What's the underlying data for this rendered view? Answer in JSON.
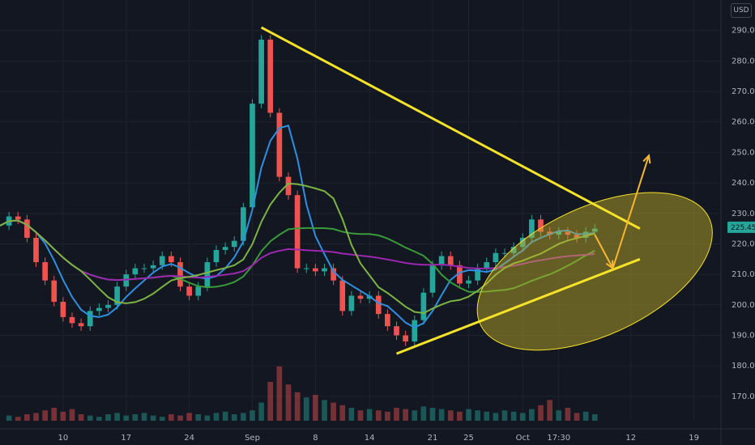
{
  "chart_data": {
    "type": "candlestick",
    "currency": "USD",
    "last_price": "225.45",
    "ylim": [
      162,
      300
    ],
    "y_ticks": [
      170,
      180,
      190,
      200,
      210,
      220,
      230,
      240,
      250,
      260,
      270,
      280,
      290
    ],
    "x_ticks": [
      {
        "label": "10",
        "day": 10
      },
      {
        "label": "17",
        "day": 17
      },
      {
        "label": "24",
        "day": 24
      },
      {
        "label": "Sep",
        "day": 31
      },
      {
        "label": "8",
        "day": 38
      },
      {
        "label": "14",
        "day": 44
      },
      {
        "label": "21",
        "day": 51
      },
      {
        "label": "25",
        "day": 55
      },
      {
        "label": "Oct",
        "day": 61
      },
      {
        "label": "17:30",
        "day": 65
      },
      {
        "label": "12",
        "day": 73
      },
      {
        "label": "19",
        "day": 80
      }
    ],
    "xlim": [
      3,
      83
    ],
    "price_path": [
      [
        3,
        226
      ],
      [
        4,
        229
      ],
      [
        5,
        228
      ],
      [
        6,
        222
      ],
      [
        7,
        214
      ],
      [
        8,
        208
      ],
      [
        9,
        201
      ],
      [
        10,
        196
      ],
      [
        11,
        194
      ],
      [
        12,
        193
      ],
      [
        13,
        198
      ],
      [
        14,
        199
      ],
      [
        15,
        200
      ],
      [
        16,
        206
      ],
      [
        17,
        210
      ],
      [
        18,
        212
      ],
      [
        19,
        212
      ],
      [
        20,
        213
      ],
      [
        21,
        216
      ],
      [
        22,
        214
      ],
      [
        23,
        206
      ],
      [
        24,
        203
      ],
      [
        25,
        206
      ],
      [
        26,
        214
      ],
      [
        27,
        218
      ],
      [
        28,
        219
      ],
      [
        29,
        221
      ],
      [
        30,
        232
      ],
      [
        31,
        266
      ],
      [
        32,
        287
      ],
      [
        33,
        263
      ],
      [
        34,
        242
      ],
      [
        35,
        236
      ],
      [
        36,
        212
      ],
      [
        37,
        212
      ],
      [
        38,
        211
      ],
      [
        39,
        212
      ],
      [
        40,
        208
      ],
      [
        41,
        198
      ],
      [
        42,
        203
      ],
      [
        43,
        202
      ],
      [
        44,
        203
      ],
      [
        45,
        197
      ],
      [
        46,
        193
      ],
      [
        47,
        190
      ],
      [
        48,
        188
      ],
      [
        49,
        195
      ],
      [
        50,
        204
      ],
      [
        51,
        213
      ],
      [
        52,
        216
      ],
      [
        53,
        213
      ],
      [
        54,
        207
      ],
      [
        55,
        208
      ],
      [
        56,
        212
      ],
      [
        57,
        214
      ],
      [
        58,
        217
      ],
      [
        59,
        217
      ],
      [
        60,
        219
      ],
      [
        61,
        222
      ],
      [
        62,
        228
      ],
      [
        63,
        224
      ],
      [
        64,
        223
      ],
      [
        65,
        224
      ],
      [
        66,
        223
      ],
      [
        67,
        222
      ],
      [
        68,
        224
      ],
      [
        69,
        225
      ]
    ],
    "volume": [
      4,
      3,
      5,
      6,
      8,
      10,
      7,
      9,
      5,
      4,
      3,
      5,
      6,
      4,
      5,
      6,
      4,
      3,
      5,
      4,
      6,
      5,
      4,
      6,
      7,
      5,
      6,
      8,
      14,
      30,
      42,
      28,
      22,
      18,
      20,
      16,
      14,
      12,
      10,
      8,
      9,
      8,
      7,
      10,
      9,
      8,
      11,
      10,
      9,
      8,
      7,
      9,
      8,
      7,
      6,
      8,
      7,
      6,
      9,
      12,
      16,
      8,
      10,
      6,
      7,
      5,
      4
    ],
    "series": [
      {
        "color": "#2f8fe0",
        "period": 5
      },
      {
        "color": "#3a9a3a",
        "period": 20
      },
      {
        "color": "#9c27b0",
        "period": 50
      },
      {
        "color": "#7cb342",
        "period": 10
      }
    ],
    "annotations": {
      "trendline_color": "#f5e32a",
      "arrow_color": "#f7b731",
      "ellipse_fill": "rgba(200,180,40,0.45)",
      "upper_trendline": [
        [
          32,
          291
        ],
        [
          74,
          225
        ]
      ],
      "lower_trendline": [
        [
          47,
          184
        ],
        [
          74,
          215
        ]
      ],
      "ellipse": {
        "cx": 69,
        "cy": 211,
        "rx": 14,
        "ry": 21,
        "rotation": -25
      },
      "arrow_down": [
        [
          69,
          223
        ],
        [
          71,
          212
        ]
      ],
      "arrow_up": [
        [
          71,
          212
        ],
        [
          75,
          249
        ]
      ]
    },
    "colors": {
      "up": "#26a69a",
      "down": "#ef5350",
      "background": "#131722",
      "grid": "#1e222d",
      "price_tag": "#26a69a"
    }
  }
}
